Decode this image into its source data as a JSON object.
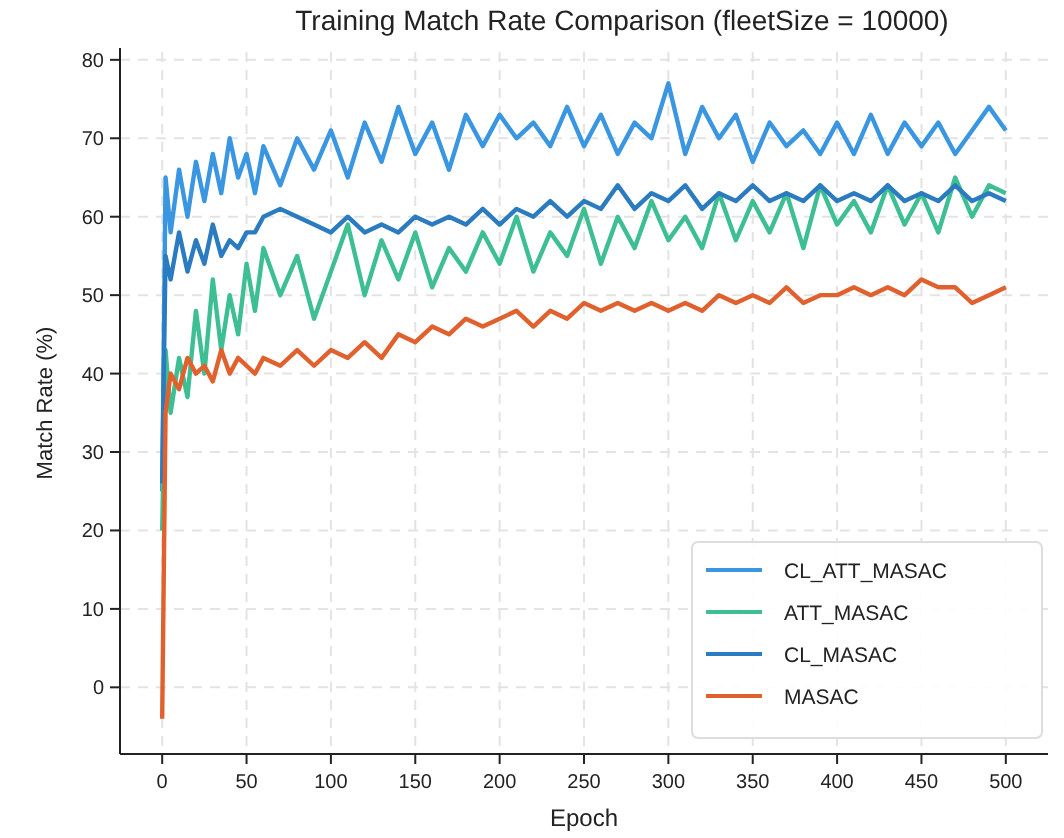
{
  "chart_data": {
    "type": "line",
    "title": "Training Match Rate Comparison (fleetSize = 10000)",
    "xlabel": "Epoch",
    "ylabel": "Match Rate (%)",
    "x": [
      0,
      2,
      5,
      10,
      15,
      20,
      25,
      30,
      35,
      40,
      45,
      50,
      55,
      60,
      70,
      80,
      90,
      100,
      110,
      120,
      130,
      140,
      150,
      160,
      170,
      180,
      190,
      200,
      210,
      220,
      230,
      240,
      250,
      260,
      270,
      280,
      290,
      300,
      310,
      320,
      330,
      340,
      350,
      360,
      370,
      380,
      390,
      400,
      410,
      420,
      430,
      440,
      450,
      460,
      470,
      480,
      490,
      500
    ],
    "xlim": [
      -25,
      525
    ],
    "xticks": [
      0,
      50,
      100,
      150,
      200,
      250,
      300,
      350,
      400,
      450,
      500
    ],
    "ylim": [
      -8.5,
      81
    ],
    "yticks": [
      0,
      10,
      20,
      30,
      40,
      50,
      60,
      70,
      80
    ],
    "grid": true,
    "legend": "bottom right",
    "marker": "none",
    "line_style": "solid",
    "series": [
      {
        "name": "CL_ATT_MASAC",
        "color": "#3a96e0",
        "values": [
          25,
          65,
          58,
          66,
          60,
          67,
          62,
          68,
          63,
          70,
          65,
          68,
          63,
          69,
          64,
          70,
          66,
          71,
          65,
          72,
          67,
          74,
          68,
          72,
          66,
          73,
          69,
          73,
          70,
          72,
          69,
          74,
          69,
          73,
          68,
          72,
          70,
          77,
          68,
          74,
          70,
          73,
          67,
          72,
          69,
          71,
          68,
          72,
          68,
          73,
          68,
          72,
          69,
          72,
          68,
          71,
          74,
          71
        ]
      },
      {
        "name": "ATT_MASAC",
        "color": "#3dbf93",
        "values": [
          20,
          43,
          35,
          42,
          37,
          48,
          40,
          52,
          43,
          50,
          45,
          54,
          48,
          56,
          50,
          55,
          47,
          53,
          59,
          50,
          57,
          52,
          58,
          51,
          56,
          53,
          58,
          54,
          60,
          53,
          58,
          55,
          61,
          54,
          60,
          56,
          62,
          57,
          60,
          56,
          63,
          57,
          62,
          58,
          63,
          56,
          64,
          59,
          62,
          58,
          64,
          59,
          63,
          58,
          65,
          60,
          64,
          63
        ]
      },
      {
        "name": "CL_MASAC",
        "color": "#2a7bbf",
        "values": [
          26,
          55,
          52,
          58,
          53,
          57,
          54,
          59,
          55,
          57,
          56,
          58,
          58,
          60,
          61,
          60,
          59,
          58,
          60,
          58,
          59,
          58,
          60,
          59,
          60,
          59,
          61,
          59,
          61,
          60,
          62,
          60,
          62,
          61,
          64,
          61,
          63,
          62,
          64,
          61,
          63,
          62,
          64,
          62,
          63,
          62,
          64,
          62,
          63,
          62,
          64,
          62,
          63,
          62,
          64,
          62,
          63,
          62
        ]
      },
      {
        "name": "MASAC",
        "color": "#e0602e",
        "values": [
          -4,
          35,
          40,
          38,
          42,
          40,
          41,
          39,
          43,
          40,
          42,
          41,
          40,
          42,
          41,
          43,
          41,
          43,
          42,
          44,
          42,
          45,
          44,
          46,
          45,
          47,
          46,
          47,
          48,
          46,
          48,
          47,
          49,
          48,
          49,
          48,
          49,
          48,
          49,
          48,
          50,
          49,
          50,
          49,
          51,
          49,
          50,
          50,
          51,
          50,
          51,
          50,
          52,
          51,
          51,
          49,
          50,
          51
        ]
      }
    ]
  }
}
